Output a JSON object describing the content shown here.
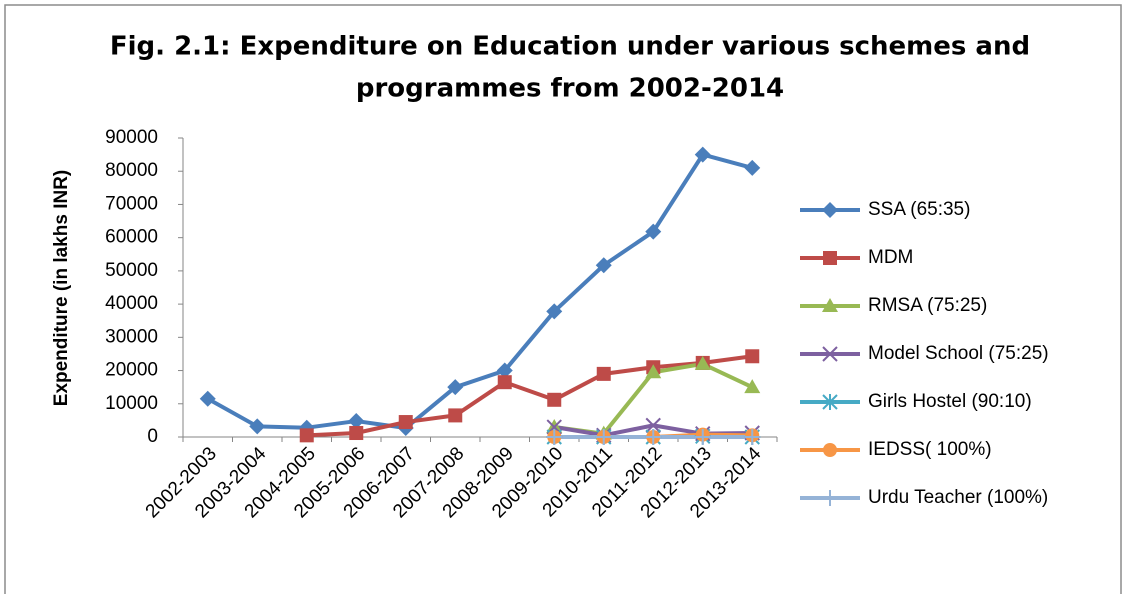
{
  "chart_data": {
    "type": "line",
    "title": [
      "Fig. 2.1: Expenditure on Education under various schemes and",
      "programmes from 2002-2014"
    ],
    "y_label": "Expenditure (in lakhs INR)",
    "categories": [
      "2002-2003",
      "2003-2004",
      "2004-2005",
      "2005-2006",
      "2006-2007",
      "2007-2008",
      "2008-2009",
      "2009-2010",
      "2010-2011",
      "2011-2012",
      "2012-2013",
      "2013-2014"
    ],
    "series": [
      {
        "name": "SSA (65:35)",
        "color": "#4a7ebb",
        "marker": "diamond",
        "values": [
          11500,
          3200,
          2800,
          4800,
          2700,
          15000,
          20000,
          37800,
          51700,
          61800,
          85000,
          81000
        ]
      },
      {
        "name": "MDM",
        "color": "#be4b48",
        "marker": "square",
        "values": [
          null,
          null,
          500,
          1200,
          4500,
          6500,
          16500,
          11200,
          19000,
          21000,
          22300,
          24300
        ]
      },
      {
        "name": "RMSA (75:25)",
        "color": "#98b954",
        "marker": "triangle",
        "values": [
          null,
          null,
          null,
          null,
          null,
          null,
          null,
          3000,
          1000,
          19500,
          22000,
          15000
        ]
      },
      {
        "name": "Model School (75:25)",
        "color": "#7d60a0",
        "marker": "x",
        "values": [
          null,
          null,
          null,
          null,
          null,
          null,
          null,
          3000,
          500,
          3500,
          1000,
          1200
        ]
      },
      {
        "name": "Girls Hostel (90:10)",
        "color": "#46aac5",
        "marker": "star",
        "values": [
          null,
          null,
          null,
          null,
          null,
          null,
          null,
          0,
          0,
          0,
          200,
          0
        ]
      },
      {
        "name": "IEDSS( 100%)",
        "color": "#f79646",
        "marker": "circle",
        "values": [
          null,
          null,
          null,
          null,
          null,
          null,
          null,
          0,
          0,
          0,
          700,
          500
        ]
      },
      {
        "name": "Urdu Teacher (100%)",
        "color": "#95b3d7",
        "marker": "plus",
        "values": [
          null,
          null,
          null,
          null,
          null,
          null,
          null,
          0,
          0,
          0,
          0,
          0
        ]
      }
    ],
    "ylim": [
      0,
      90000
    ],
    "yticks": [
      0,
      10000,
      20000,
      30000,
      40000,
      50000,
      60000,
      70000,
      80000,
      90000
    ],
    "grid": false,
    "legend": "right"
  }
}
